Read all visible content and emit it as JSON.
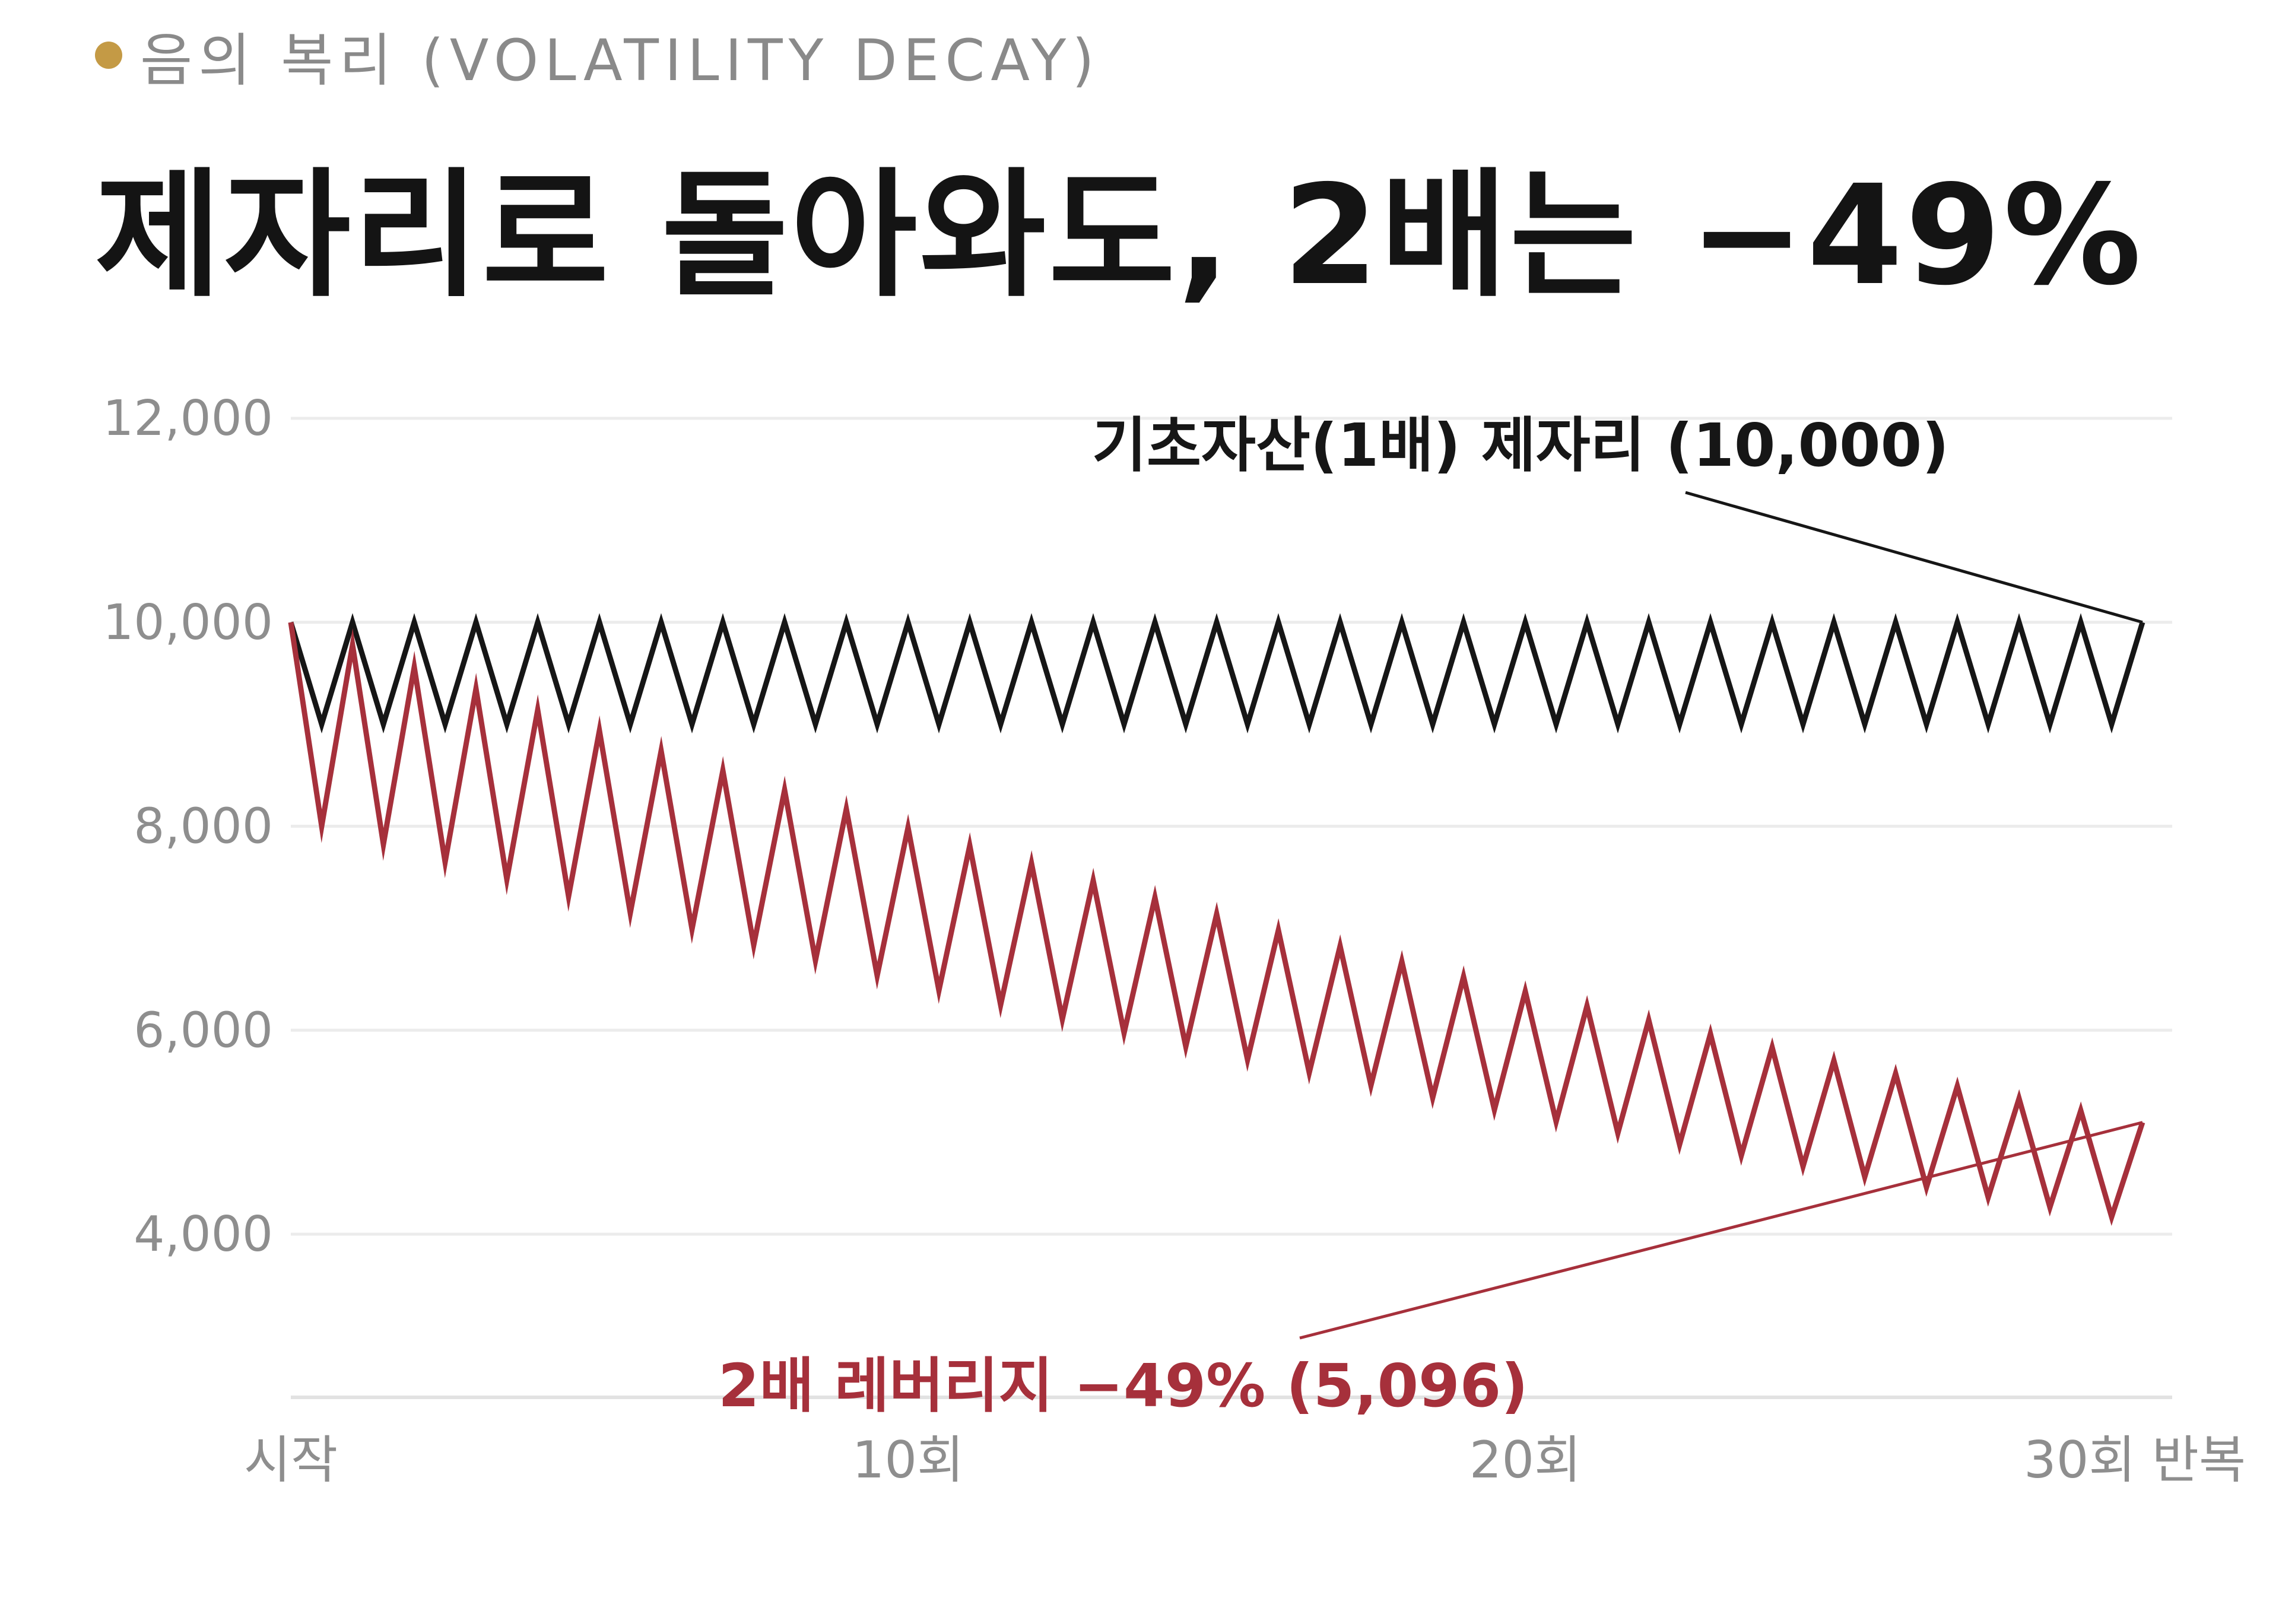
{
  "header": {
    "eyebrow": "음의 복리 (VOLATILITY DECAY)",
    "title": "제자리로 돌아와도, 2배는 −49%"
  },
  "colors": {
    "accent_dot": "#c49a45",
    "base_line": "#161616",
    "lev_line": "#a6303b",
    "grid": "#ececec"
  },
  "chart_data": {
    "type": "line",
    "title": "제자리로 돌아와도, 2배는 −49%",
    "xlabel": "",
    "ylabel": "",
    "xlim": [
      0,
      30
    ],
    "ylim": [
      2400,
      12000
    ],
    "grid": true,
    "y_ticks": [
      12000,
      10000,
      8000,
      6000,
      4000
    ],
    "y_tick_labels": [
      "12,000",
      "10,000",
      "8,000",
      "6,000",
      "4,000"
    ],
    "x_ticks": [
      0,
      10,
      20,
      30
    ],
    "x_tick_labels": [
      "시작",
      "10회",
      "20회",
      "30회 반복"
    ],
    "cycles": 30,
    "series": [
      {
        "name": "기초자산(1배)",
        "key": "base",
        "down_pct": -10,
        "up_pct": 11.11,
        "start": 10000,
        "end": 10000
      },
      {
        "name": "2배 레버리지",
        "key": "lev",
        "down_pct": -20,
        "up_pct": 22.22,
        "start": 10000,
        "end": 5096
      }
    ],
    "annotations": [
      {
        "series": "base",
        "text": "기초자산(1배)  제자리 (10,000)"
      },
      {
        "series": "lev",
        "text": "2배 레버리지  −49%  (5,096)"
      }
    ]
  }
}
